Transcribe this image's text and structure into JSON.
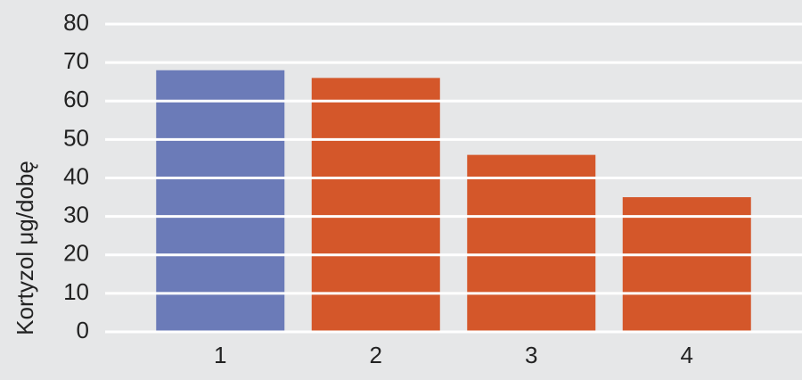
{
  "chart_data": {
    "type": "bar",
    "y_label": "Kortyzol μg/dobę",
    "categories": [
      "1",
      "2",
      "3",
      "4"
    ],
    "values": [
      68,
      66,
      46,
      35
    ],
    "colors": [
      "#6b7bb8",
      "#d4572a",
      "#d4572a",
      "#d4572a"
    ],
    "ylim": [
      0,
      80
    ],
    "yticks": [
      0,
      10,
      20,
      30,
      40,
      50,
      60,
      70,
      80
    ],
    "grid": true
  }
}
